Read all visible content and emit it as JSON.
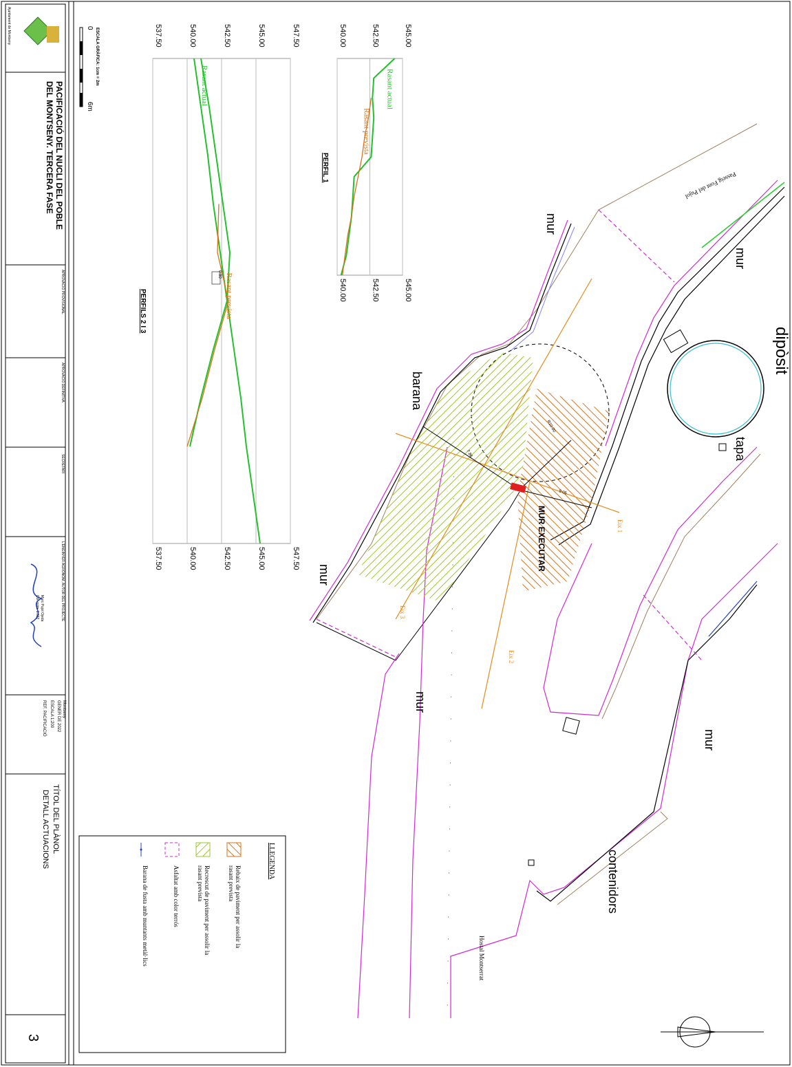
{
  "title_block": {
    "logo_caption": "Ajuntament de Montseny",
    "project_title": [
      "PACIFICACIÓ DEL NUCLI DEL POBLE",
      "DEL MONTSENY. TERCERA FASE"
    ],
    "approval_provisional": "APROVACIÓ PROVISIONAL",
    "approval_definitive": "APROVACIÓ DEFINITIVA",
    "secretary": "SECRETARI",
    "engineer": "L'ENGINYER AGRÒNOM, AUTOR DEL PROJECTE",
    "engineer_name": "Marc Pujol Ojeda",
    "engineer_number": "Col. núm. 1.632",
    "place": "Montseny",
    "date": "GENER DE 2022",
    "scale": "ESCALA 1:200",
    "reference": "REF. PACIFICACIÓ",
    "sheet_title_label": "TÍTOL DEL PLÀNOL",
    "sheet_title": "DETALL ACTUACIONS",
    "sheet_number": "3"
  },
  "graphic_scale": {
    "label": "ESCALA GRÀFICA: 1cm = 2m",
    "start": "0",
    "end": "6m"
  },
  "profiles": [
    {
      "title": "PERFIL 1",
      "ylim": [
        540,
        545
      ],
      "ticks": [
        {
          "value": 545,
          "label": "545.00"
        },
        {
          "value": 542.5,
          "label": "542.50"
        },
        {
          "value": 540,
          "label": "540.00"
        }
      ],
      "lines": [
        {
          "label": "Rasant actual",
          "color": "#22c02a",
          "values": [
            544.4,
            542.8,
            542.7,
            542.8,
            542.7,
            542.6,
            541.3,
            541.2,
            541.1,
            540.9,
            540.7,
            540.3
          ]
        },
        {
          "label": "Rasant prevista",
          "color": "#d9731a",
          "values": [
            null,
            null,
            542.6,
            542.4,
            542.1,
            541.9,
            541.6,
            541.3,
            541.1,
            540.8,
            540.6,
            540.4
          ]
        }
      ]
    },
    {
      "title": "PERFILS 2 I 3",
      "ylim": [
        537.5,
        547.5
      ],
      "annotation": "0.80",
      "ticks": [
        {
          "value": 547.5,
          "label": "547.50"
        },
        {
          "value": 545,
          "label": "545.00"
        },
        {
          "value": 542.5,
          "label": "542.50"
        },
        {
          "value": 540,
          "label": "540.00"
        },
        {
          "value": 537.5,
          "label": "537.50"
        }
      ],
      "lines": [
        {
          "label": "Rasant actual",
          "color": "#22c02a",
          "values": [
            540.5,
            541.0,
            541.5,
            541.9,
            542.4,
            542.9,
            543.4,
            543.9,
            544.3,
            544.8,
            545.3
          ]
        },
        {
          "color": "#22c02a",
          "values": [
            541.0,
            541.6,
            542.1,
            542.6,
            543.1,
            542.9,
            541.9,
            541.0,
            540.2,
            null,
            null
          ]
        },
        {
          "label": "Rasant prevista",
          "color": "#d9731a",
          "values": [
            null,
            null,
            null,
            542.3,
            542.2,
            543.0,
            542.0,
            541.1,
            540.0,
            null,
            null
          ]
        }
      ]
    }
  ],
  "map_labels": {
    "deposit": "dipòsit",
    "lid": "tapa",
    "walls": [
      "mur",
      "mur",
      "mur",
      "mur",
      "mur"
    ],
    "railing": "barana",
    "wall_to_build": "MUR EXECUTAR",
    "axes": [
      "Eix 1",
      "Eix 2",
      "Eix 3"
    ],
    "street": "Passeig Font del Pujol",
    "containers": "contenidors",
    "hostal": "Hostal Montserrat",
    "dimensions": [
      "7.86",
      "5.05",
      "R10.00"
    ]
  },
  "legend": {
    "title": "LLEGENDA",
    "items": [
      [
        "Rebaix de paviment per assolir la",
        "rasant prevista"
      ],
      [
        "Recrescut de paviment per assolir la",
        "rasant prevista"
      ],
      [
        "Asfaltat amb color terrós"
      ],
      [
        "Barana de fusta amb muntants metàl·lics"
      ]
    ]
  }
}
